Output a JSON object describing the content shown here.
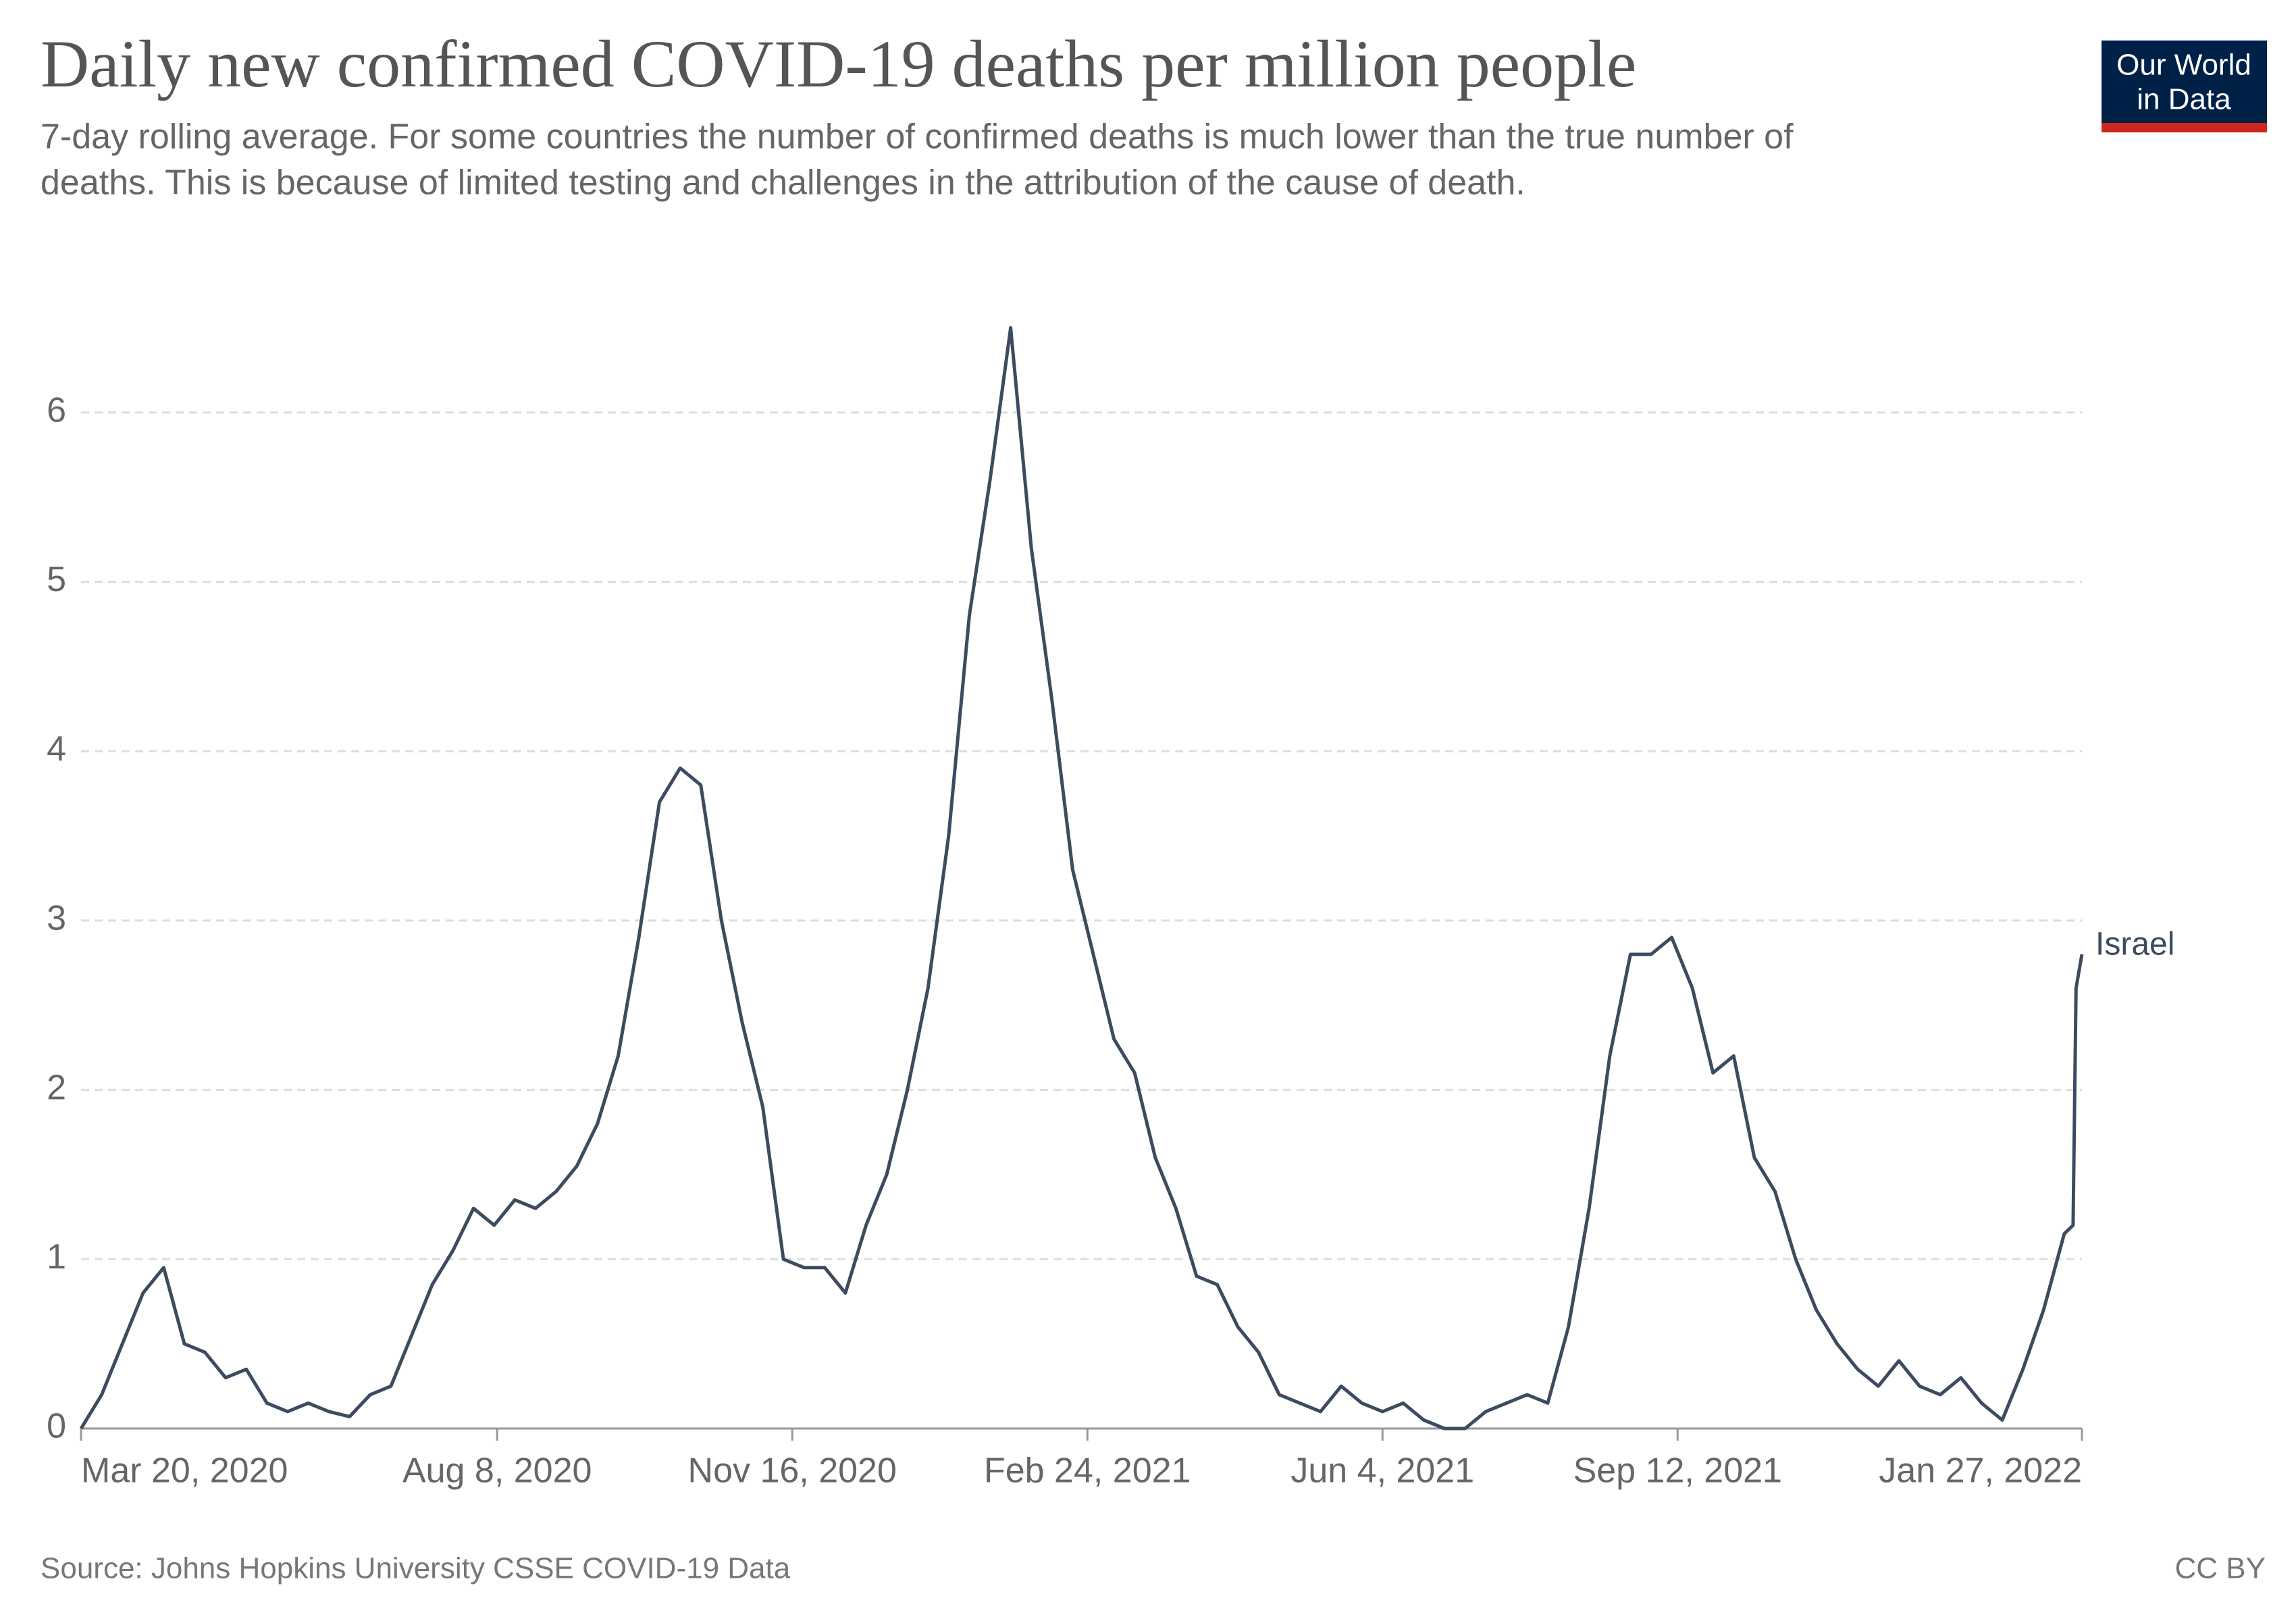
{
  "chart_data": {
    "type": "line",
    "title": "Daily new confirmed COVID-19 deaths per million people",
    "subtitle": [
      "7-day rolling average. For some countries the number of confirmed deaths is much lower than the true number of",
      "deaths. This is because of limited testing and challenges in the attribution of the cause of death."
    ],
    "source": "Source: Johns Hopkins University CSSE COVID-19 Data",
    "license": "CC BY",
    "logo": [
      "Our World",
      "in Data"
    ],
    "x": [
      "2020-03-20",
      "2020-03-27",
      "2020-04-03",
      "2020-04-10",
      "2020-04-17",
      "2020-04-24",
      "2020-05-01",
      "2020-05-08",
      "2020-05-15",
      "2020-05-22",
      "2020-05-29",
      "2020-06-05",
      "2020-06-12",
      "2020-06-19",
      "2020-06-26",
      "2020-07-03",
      "2020-07-10",
      "2020-07-17",
      "2020-07-24",
      "2020-07-31",
      "2020-08-07",
      "2020-08-14",
      "2020-08-21",
      "2020-08-28",
      "2020-09-04",
      "2020-09-11",
      "2020-09-18",
      "2020-09-25",
      "2020-10-02",
      "2020-10-09",
      "2020-10-16",
      "2020-10-23",
      "2020-10-30",
      "2020-11-06",
      "2020-11-13",
      "2020-11-20",
      "2020-11-27",
      "2020-12-04",
      "2020-12-11",
      "2020-12-18",
      "2020-12-25",
      "2021-01-01",
      "2021-01-08",
      "2021-01-15",
      "2021-01-22",
      "2021-01-29",
      "2021-02-05",
      "2021-02-12",
      "2021-02-19",
      "2021-02-26",
      "2021-03-05",
      "2021-03-12",
      "2021-03-19",
      "2021-03-26",
      "2021-04-02",
      "2021-04-09",
      "2021-04-16",
      "2021-04-23",
      "2021-04-30",
      "2021-05-07",
      "2021-05-14",
      "2021-05-21",
      "2021-05-28",
      "2021-06-04",
      "2021-06-11",
      "2021-06-18",
      "2021-06-25",
      "2021-07-02",
      "2021-07-09",
      "2021-07-16",
      "2021-07-23",
      "2021-07-30",
      "2021-08-06",
      "2021-08-13",
      "2021-08-20",
      "2021-08-27",
      "2021-09-03",
      "2021-09-10",
      "2021-09-17",
      "2021-09-24",
      "2021-10-01",
      "2021-10-08",
      "2021-10-15",
      "2021-10-22",
      "2021-10-29",
      "2021-11-05",
      "2021-11-12",
      "2021-11-19",
      "2021-11-26",
      "2021-12-03",
      "2021-12-10",
      "2021-12-17",
      "2021-12-24",
      "2021-12-31",
      "2022-01-07",
      "2022-01-14",
      "2022-01-21",
      "2022-01-24",
      "2022-01-25",
      "2022-01-27"
    ],
    "series": [
      {
        "name": "Israel",
        "color": "#3c4b5f",
        "values": [
          0,
          0.2,
          0.5,
          0.8,
          0.95,
          0.5,
          0.45,
          0.3,
          0.35,
          0.15,
          0.1,
          0.15,
          0.1,
          0.07,
          0.2,
          0.25,
          0.55,
          0.85,
          1.05,
          1.3,
          1.2,
          1.35,
          1.3,
          1.4,
          1.55,
          1.8,
          2.2,
          2.9,
          3.7,
          3.9,
          3.8,
          3.0,
          2.4,
          1.9,
          1.0,
          0.95,
          0.95,
          0.8,
          1.2,
          1.5,
          2.0,
          2.6,
          3.5,
          4.8,
          5.6,
          6.5,
          5.2,
          4.3,
          3.3,
          2.8,
          2.3,
          2.1,
          1.6,
          1.3,
          0.9,
          0.85,
          0.6,
          0.45,
          0.2,
          0.15,
          0.1,
          0.25,
          0.15,
          0.1,
          0.15,
          0.05,
          0,
          0,
          0.1,
          0.15,
          0.2,
          0.15,
          0.6,
          1.3,
          2.2,
          2.8,
          2.8,
          2.9,
          2.6,
          2.1,
          2.2,
          1.6,
          1.4,
          1.0,
          0.7,
          0.5,
          0.35,
          0.25,
          0.4,
          0.25,
          0.2,
          0.3,
          0.15,
          0.05,
          0.35,
          0.7,
          1.15,
          1.2,
          2.6,
          2.8
        ]
      }
    ],
    "xlim": [
      "2020-03-20",
      "2022-01-27"
    ],
    "xticks": [
      {
        "value": "2020-03-20",
        "label": "Mar 20, 2020"
      },
      {
        "value": "2020-08-08",
        "label": "Aug 8, 2020"
      },
      {
        "value": "2020-11-16",
        "label": "Nov 16, 2020"
      },
      {
        "value": "2021-02-24",
        "label": "Feb 24, 2021"
      },
      {
        "value": "2021-06-04",
        "label": "Jun 4, 2021"
      },
      {
        "value": "2021-09-12",
        "label": "Sep 12, 2021"
      },
      {
        "value": "2022-01-27",
        "label": "Jan 27, 2022"
      }
    ],
    "ylim": [
      0,
      7
    ],
    "yticks": [
      0,
      1,
      2,
      3,
      4,
      5,
      6
    ],
    "grid": true
  }
}
